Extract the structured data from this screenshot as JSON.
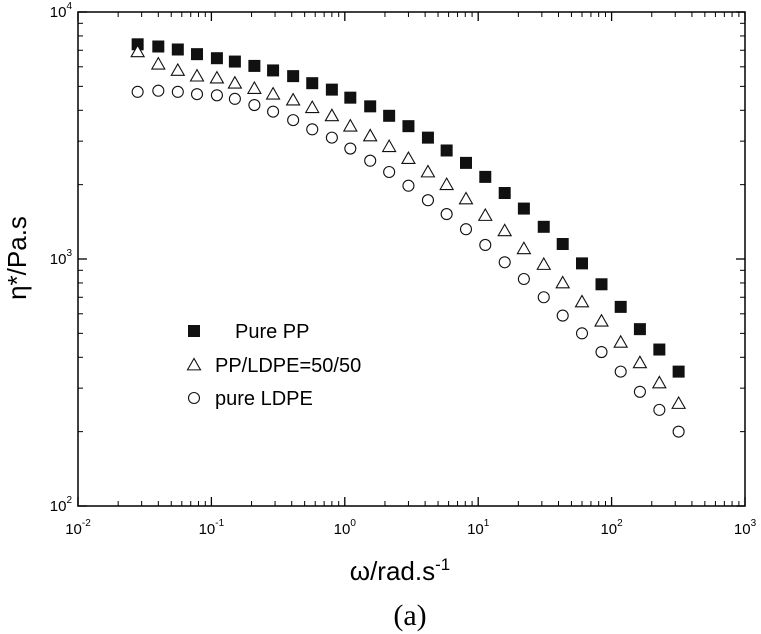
{
  "chart_data": {
    "type": "scatter",
    "xscale": "log",
    "yscale": "log",
    "xlim": [
      0.01,
      1000
    ],
    "ylim": [
      100,
      10000
    ],
    "xticks": [
      {
        "base": "10",
        "exp": "-2",
        "value": 0.01
      },
      {
        "base": "10",
        "exp": "-1",
        "value": 0.1
      },
      {
        "base": "10",
        "exp": "0",
        "value": 1
      },
      {
        "base": "10",
        "exp": "1",
        "value": 10
      },
      {
        "base": "10",
        "exp": "2",
        "value": 100
      },
      {
        "base": "10",
        "exp": "3",
        "value": 1000
      }
    ],
    "yticks": [
      {
        "base": "10",
        "exp": "2",
        "value": 100
      },
      {
        "base": "10",
        "exp": "3",
        "value": 1000
      },
      {
        "base": "10",
        "exp": "4",
        "value": 10000
      }
    ],
    "xlabel": {
      "main": "ω/rad.s",
      "sup": "-1"
    },
    "ylabel": "η*/Pa.s",
    "caption": "(a)",
    "legend_position": "lower-left",
    "series": [
      {
        "name": "Pure PP",
        "marker": "filled-square",
        "color": "#000000",
        "points": [
          [
            0.028,
            7400
          ],
          [
            0.04,
            7250
          ],
          [
            0.056,
            7050
          ],
          [
            0.078,
            6750
          ],
          [
            0.11,
            6500
          ],
          [
            0.15,
            6300
          ],
          [
            0.21,
            6050
          ],
          [
            0.29,
            5800
          ],
          [
            0.41,
            5500
          ],
          [
            0.57,
            5150
          ],
          [
            0.8,
            4850
          ],
          [
            1.1,
            4500
          ],
          [
            1.55,
            4150
          ],
          [
            2.15,
            3800
          ],
          [
            3.0,
            3450
          ],
          [
            4.2,
            3100
          ],
          [
            5.8,
            2750
          ],
          [
            8.1,
            2450
          ],
          [
            11.3,
            2150
          ],
          [
            15.8,
            1850
          ],
          [
            22,
            1600
          ],
          [
            31,
            1350
          ],
          [
            43,
            1150
          ],
          [
            60,
            960
          ],
          [
            84,
            790
          ],
          [
            117,
            640
          ],
          [
            163,
            520
          ],
          [
            228,
            430
          ],
          [
            318,
            350
          ]
        ]
      },
      {
        "name": "PP/LDPE=50/50",
        "marker": "open-triangle",
        "color": "#000000",
        "points": [
          [
            0.028,
            6900
          ],
          [
            0.04,
            6150
          ],
          [
            0.056,
            5800
          ],
          [
            0.078,
            5500
          ],
          [
            0.11,
            5400
          ],
          [
            0.15,
            5150
          ],
          [
            0.21,
            4900
          ],
          [
            0.29,
            4650
          ],
          [
            0.41,
            4400
          ],
          [
            0.57,
            4100
          ],
          [
            0.8,
            3800
          ],
          [
            1.1,
            3450
          ],
          [
            1.55,
            3150
          ],
          [
            2.15,
            2850
          ],
          [
            3.0,
            2550
          ],
          [
            4.2,
            2250
          ],
          [
            5.8,
            2000
          ],
          [
            8.1,
            1750
          ],
          [
            11.3,
            1500
          ],
          [
            15.8,
            1300
          ],
          [
            22,
            1100
          ],
          [
            31,
            950
          ],
          [
            43,
            800
          ],
          [
            60,
            670
          ],
          [
            84,
            560
          ],
          [
            117,
            460
          ],
          [
            163,
            380
          ],
          [
            228,
            315
          ],
          [
            318,
            260
          ]
        ]
      },
      {
        "name": "pure LDPE",
        "marker": "open-circle",
        "color": "#000000",
        "points": [
          [
            0.028,
            4750
          ],
          [
            0.04,
            4800
          ],
          [
            0.056,
            4750
          ],
          [
            0.078,
            4650
          ],
          [
            0.11,
            4600
          ],
          [
            0.15,
            4450
          ],
          [
            0.21,
            4200
          ],
          [
            0.29,
            3950
          ],
          [
            0.41,
            3650
          ],
          [
            0.57,
            3350
          ],
          [
            0.8,
            3100
          ],
          [
            1.1,
            2800
          ],
          [
            1.55,
            2500
          ],
          [
            2.15,
            2250
          ],
          [
            3.0,
            1980
          ],
          [
            4.2,
            1730
          ],
          [
            5.8,
            1520
          ],
          [
            8.1,
            1320
          ],
          [
            11.3,
            1140
          ],
          [
            15.8,
            970
          ],
          [
            22,
            830
          ],
          [
            31,
            700
          ],
          [
            43,
            590
          ],
          [
            60,
            500
          ],
          [
            84,
            420
          ],
          [
            117,
            350
          ],
          [
            163,
            290
          ],
          [
            228,
            245
          ],
          [
            318,
            200
          ]
        ]
      }
    ]
  }
}
